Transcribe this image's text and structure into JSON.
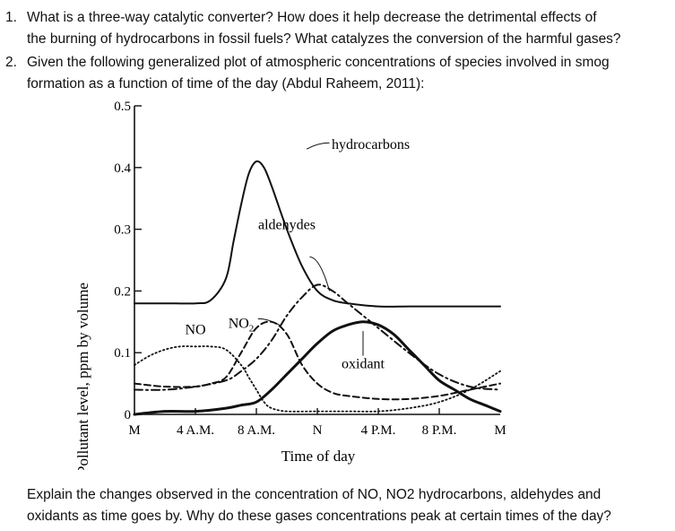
{
  "questions": [
    {
      "number": "1.",
      "lines": [
        "What is a three-way catalytic converter? How does it help decrease the detrimental effects of",
        "the burning of hydrocarbons in fossil fuels? What catalyzes the conversion of the harmful gases?"
      ]
    },
    {
      "number": "2.",
      "lines": [
        "Given the following generalized plot of atmospheric concentrations of species involved in smog",
        "formation as a function of time of the day (Abdul Raheem, 2011):"
      ]
    }
  ],
  "closing": [
    "Explain the changes observed in the concentration of NO, NO2 hydrocarbons, aldehydes and",
    "oxidants as time goes by. Why do these gases concentrations peak at certain times of the day?"
  ],
  "chart_data": {
    "type": "line",
    "xlabel": "Time of day",
    "ylabel": "Pollutant level, ppm by volume",
    "ylim": [
      0,
      0.5
    ],
    "xlim": [
      0,
      24
    ],
    "yticks": [
      "0",
      "0.1",
      "0.2",
      "0.3",
      "0.4",
      "0.5"
    ],
    "xticks": [
      "M",
      "4 A.M.",
      "8 A.M.",
      "N",
      "4 P.M.",
      "8 P.M.",
      "M"
    ],
    "xtick_values": [
      0,
      4,
      8,
      12,
      16,
      20,
      24
    ],
    "series": [
      {
        "name": "hydrocarbons",
        "style": "solid",
        "x": [
          0,
          2,
          4,
          5,
          6,
          6.5,
          7,
          7.5,
          8,
          8.5,
          9,
          10,
          11,
          12,
          13,
          14,
          16,
          18,
          20,
          22,
          24
        ],
        "y": [
          0.18,
          0.18,
          0.18,
          0.185,
          0.22,
          0.28,
          0.34,
          0.39,
          0.41,
          0.4,
          0.37,
          0.3,
          0.24,
          0.2,
          0.185,
          0.18,
          0.175,
          0.175,
          0.175,
          0.175,
          0.175
        ]
      },
      {
        "name": "NO",
        "style": "dotted",
        "x": [
          0,
          1,
          2,
          3,
          4,
          5,
          6,
          7,
          7.5,
          8,
          8.5,
          9,
          10,
          12,
          14,
          16,
          18,
          20,
          22,
          24
        ],
        "y": [
          0.08,
          0.095,
          0.105,
          0.11,
          0.11,
          0.11,
          0.105,
          0.08,
          0.06,
          0.04,
          0.02,
          0.01,
          0.005,
          0.005,
          0.005,
          0.005,
          0.01,
          0.02,
          0.04,
          0.07
        ]
      },
      {
        "name": "NO2",
        "style": "dashed",
        "x": [
          0,
          2,
          4,
          5,
          6,
          7,
          8,
          9,
          10,
          11,
          12,
          13,
          14,
          16,
          18,
          20,
          22,
          23,
          24
        ],
        "y": [
          0.05,
          0.045,
          0.045,
          0.05,
          0.06,
          0.1,
          0.14,
          0.15,
          0.13,
          0.08,
          0.05,
          0.035,
          0.03,
          0.025,
          0.025,
          0.03,
          0.04,
          0.045,
          0.05
        ]
      },
      {
        "name": "aldehydes",
        "style": "dashdot",
        "x": [
          0,
          2,
          4,
          6,
          7,
          8,
          9,
          10,
          11,
          12,
          13,
          14,
          15,
          16,
          18,
          20,
          22,
          24
        ],
        "y": [
          0.04,
          0.04,
          0.045,
          0.055,
          0.07,
          0.09,
          0.12,
          0.16,
          0.19,
          0.21,
          0.2,
          0.18,
          0.16,
          0.14,
          0.1,
          0.065,
          0.045,
          0.04
        ]
      },
      {
        "name": "oxidant",
        "style": "solid-thick",
        "x": [
          0,
          2,
          4,
          6,
          7,
          8,
          9,
          10,
          11,
          12,
          13,
          14,
          15,
          16,
          17,
          18,
          19,
          20,
          21,
          22,
          23,
          24
        ],
        "y": [
          0.0,
          0.005,
          0.005,
          0.01,
          0.015,
          0.02,
          0.04,
          0.065,
          0.09,
          0.115,
          0.135,
          0.145,
          0.15,
          0.145,
          0.13,
          0.105,
          0.08,
          0.055,
          0.04,
          0.025,
          0.015,
          0.005
        ]
      }
    ],
    "annotations": [
      {
        "text": "hydrocarbons",
        "x": 15.5,
        "y": 0.43
      },
      {
        "text": "aldehydes",
        "x": 10,
        "y": 0.3
      },
      {
        "text": "NO",
        "x": 4,
        "y": 0.13
      },
      {
        "text": "NO",
        "x": 7,
        "y": 0.14,
        "sub": "2"
      },
      {
        "text": "oxidant",
        "x": 15,
        "y": 0.075
      }
    ]
  }
}
